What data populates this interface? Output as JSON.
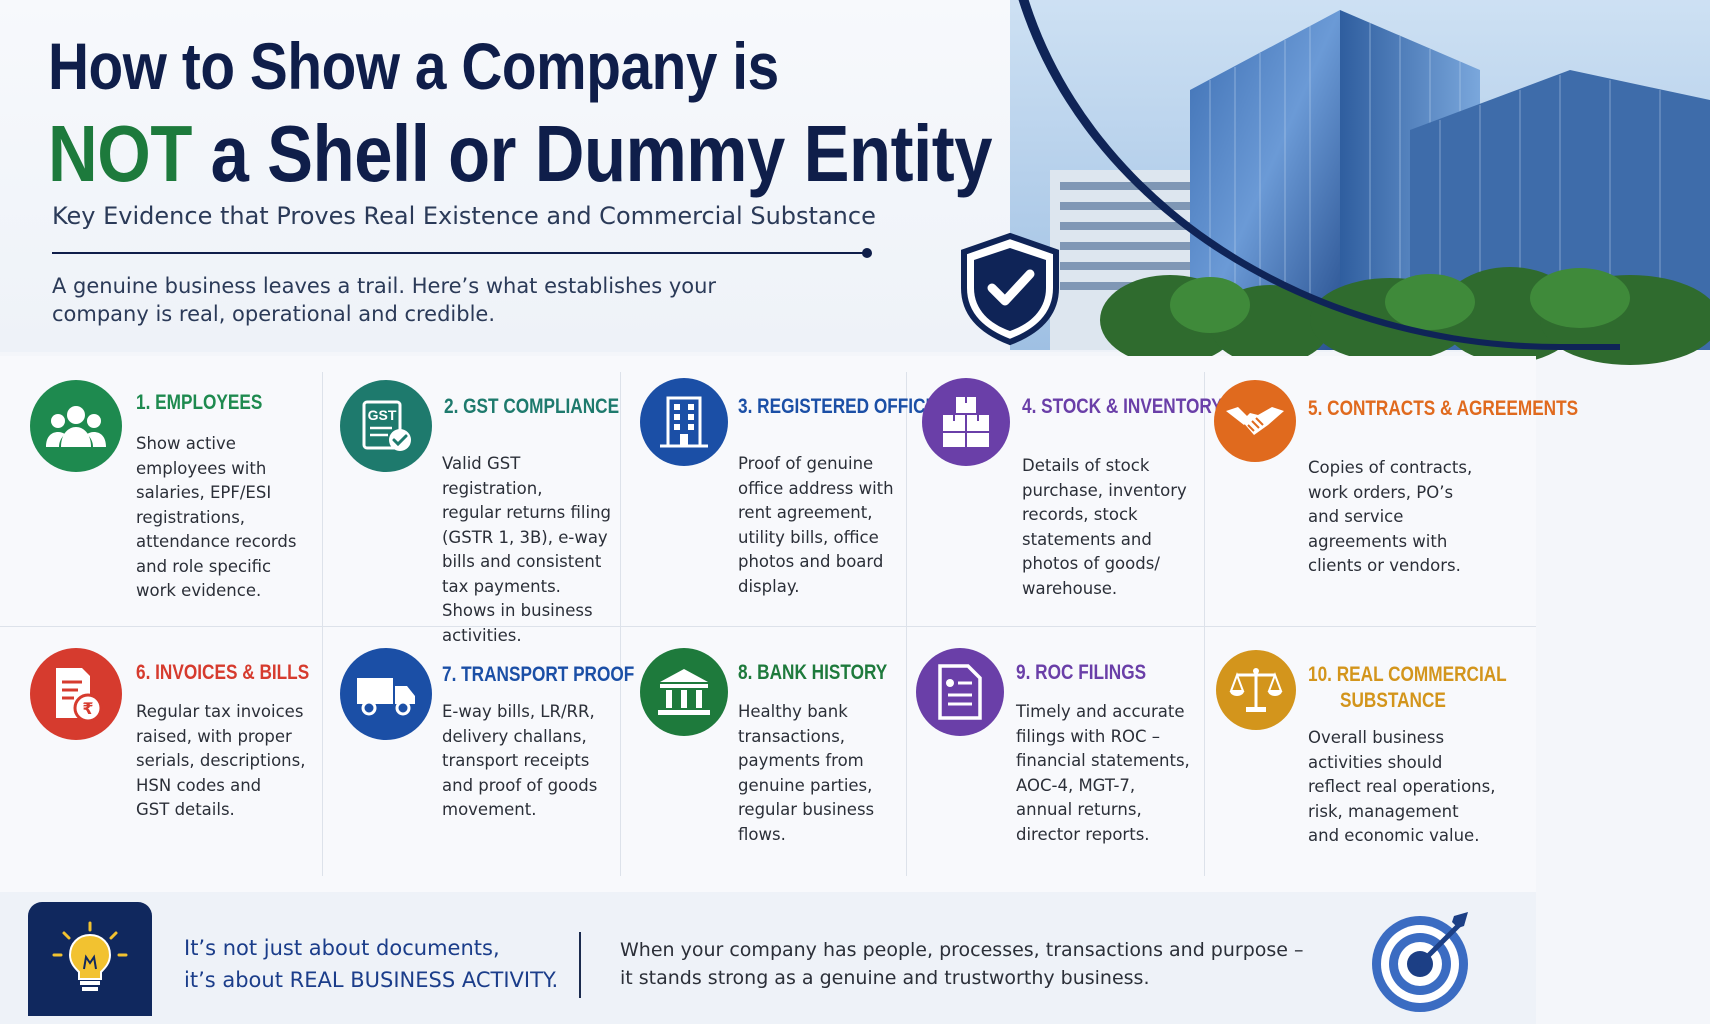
{
  "header": {
    "title_line1": "How to Show a Company is",
    "title_not": "NOT",
    "title_line2_rest": " a Shell or Dummy Entity",
    "subtitle": "Key Evidence that Proves Real Existence and Commercial Substance",
    "intro_line1": "A genuine business leaves a trail. Here’s what establishes your",
    "intro_line2": "company is real, operational and credible."
  },
  "items": [
    {
      "title": "1.  EMPLOYEES",
      "color": "#1e8a4f",
      "icon": "people-icon",
      "lines": [
        "Show active",
        "employees with",
        "salaries, EPF/ESI",
        "registrations,",
        "attendance records",
        "and role specific",
        "work evidence."
      ]
    },
    {
      "title": "2.  GST COMPLIANCE",
      "color": "#1e7a6d",
      "icon": "gst-document-icon",
      "lines": [
        "Valid GST registration,",
        "regular returns filing",
        "(GSTR 1, 3B), e-way",
        "bills and consistent",
        "tax payments.",
        "Shows in business",
        "activities."
      ]
    },
    {
      "title": "3. REGISTERED OFFICE",
      "color": "#1b4fa6",
      "icon": "office-building-icon",
      "lines": [
        "Proof of genuine",
        "office address with",
        "rent agreement,",
        "utility bills, office",
        "photos and board",
        "display."
      ]
    },
    {
      "title": "4.  STOCK & INVENTORY",
      "color": "#6a3fa8",
      "icon": "boxes-icon",
      "lines": [
        "Details of stock",
        "purchase, inventory",
        "records, stock",
        "statements and",
        "photos of goods/",
        "warehouse."
      ]
    },
    {
      "title": "5.  CONTRACTS & AGREEMENTS",
      "color": "#e06a1e",
      "icon": "handshake-icon",
      "lines": [
        "Copies of contracts,",
        "work orders, PO’s",
        "and service",
        "agreements with",
        "clients or vendors."
      ]
    },
    {
      "title": "6.  INVOICES & BILLS",
      "color": "#d63b2e",
      "icon": "invoice-rupee-icon",
      "lines": [
        "Regular tax invoices",
        "raised, with proper",
        "serials, descriptions,",
        "HSN codes and",
        "GST details."
      ]
    },
    {
      "title": "7.  TRANSPORT PROOF",
      "color": "#1b4fa6",
      "icon": "truck-icon",
      "lines": [
        "E-way bills, LR/RR,",
        "delivery challans,",
        "transport receipts",
        "and proof of goods",
        "movement."
      ]
    },
    {
      "title": "8.  BANK HISTORY",
      "color": "#1e7a3c",
      "icon": "bank-icon",
      "lines": [
        "Healthy bank",
        "transactions,",
        "payments from",
        "genuine parties,",
        "regular business",
        "flows."
      ]
    },
    {
      "title": "9.  ROC FILINGS",
      "color": "#6a3fa8",
      "icon": "document-icon",
      "lines": [
        "Timely and accurate",
        "filings with ROC –",
        "financial statements,",
        "AOC-4, MGT-7,",
        "annual returns,",
        "director reports."
      ]
    },
    {
      "title": "10. REAL COMMERCIAL",
      "title2": "SUBSTANCE",
      "color": "#d3951c",
      "icon": "scales-icon",
      "lines": [
        "Overall business",
        "activities should",
        "reflect real operations,",
        "risk, management",
        "and economic value."
      ]
    }
  ],
  "footer": {
    "left_line1": "It’s not just about documents,",
    "left_line2": "it’s about REAL BUSINESS ACTIVITY.",
    "right_line1": "When your company has people, processes, transactions and purpose –",
    "right_line2": "it stands strong as a genuine and trustworthy business."
  }
}
